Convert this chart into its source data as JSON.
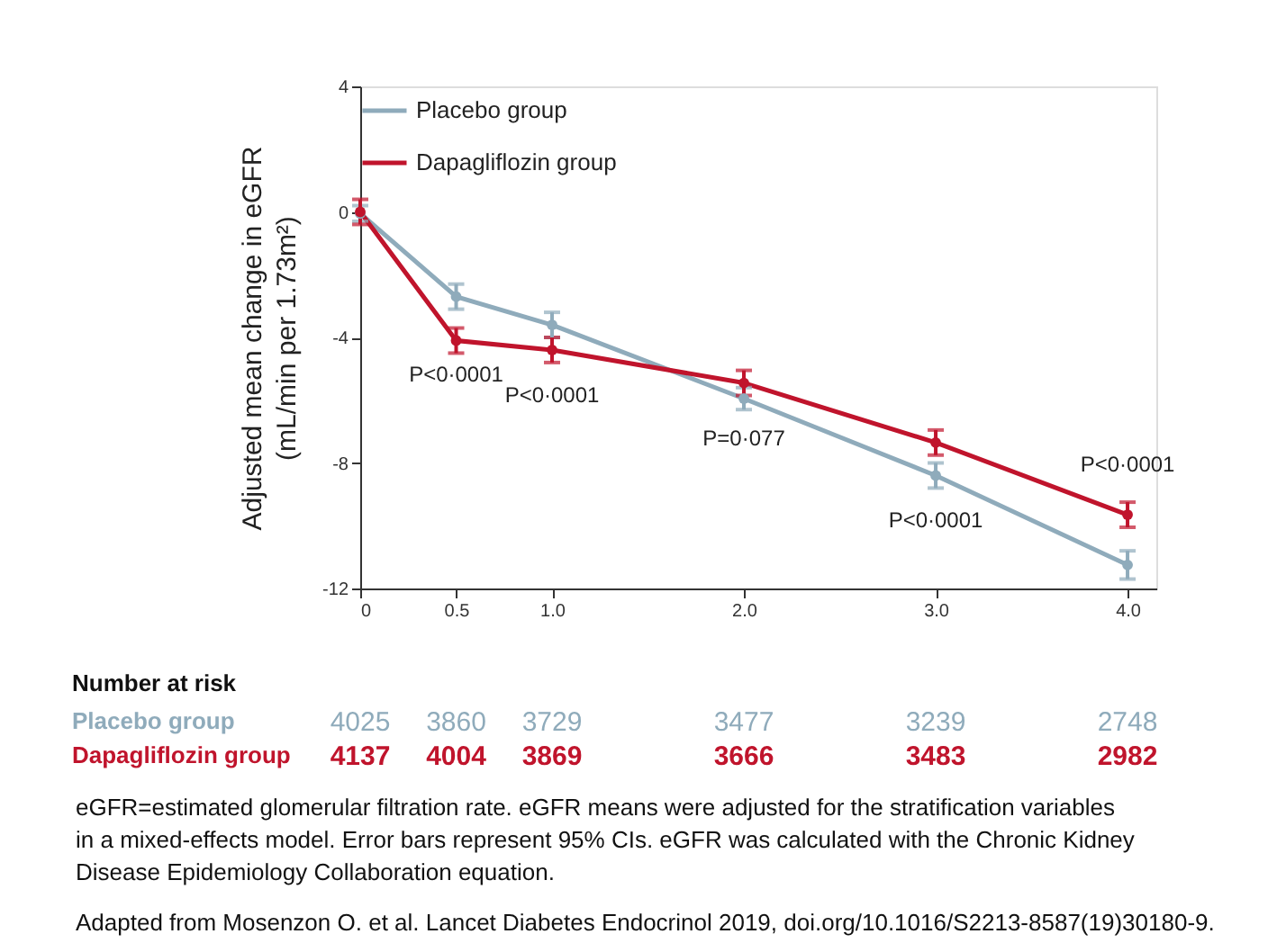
{
  "chart_data": {
    "type": "line",
    "ylabel": "Adjusted mean change in eGFR (mL/min per 1.73m²)",
    "x": [
      0,
      0.5,
      1,
      2,
      3,
      4
    ],
    "series": [
      {
        "name": "Placebo group",
        "color": "#8fabbb",
        "values": [
          -0.05,
          -2.7,
          -3.6,
          -5.95,
          -8.4,
          -11.25
        ],
        "errors": [
          0.25,
          0.4,
          0.4,
          0.35,
          0.4,
          0.45
        ]
      },
      {
        "name": "Dapagliflozin group",
        "color": "#c0142c",
        "values": [
          0,
          -4.1,
          -4.4,
          -5.45,
          -7.35,
          -9.65
        ],
        "errors": [
          0.4,
          0.4,
          0.4,
          0.4,
          0.4,
          0.4
        ]
      }
    ],
    "xlim": [
      0,
      4.15
    ],
    "xticks": [
      {
        "value": 0,
        "label": "0"
      },
      0.5,
      {
        "value": 1,
        "label": "1.0"
      },
      {
        "value": 2,
        "label": "2.0"
      },
      {
        "value": 3,
        "label": "3.0"
      },
      {
        "value": 4,
        "label": "4.0"
      }
    ],
    "ylim": [
      -12,
      4
    ],
    "yticks": [
      -12,
      -8,
      -4,
      0,
      4
    ],
    "grid": false,
    "legend": "top left",
    "marker": "circle",
    "line_style": "solid",
    "annotations": [
      "P<0·0001",
      "P<0·0001",
      "P=0·077",
      "P<0·0001",
      "P<0·0001",
      "Number at risk",
      "Placebo group",
      "4025",
      "3860",
      "3729",
      "3477",
      "3239",
      "2748",
      "Dapagliflozin group",
      "4137",
      "4004",
      "3869",
      "3666",
      "3483",
      "2982",
      "eGFR=estimated glomerular filtration rate. eGFR means were adjusted for the stratification variables in a mixed-effects model. Error bars represent 95% CIs. eGFR was calculated with the Chronic Kidney Disease Epidemiology Collaboration equation.",
      "Adapted from Mosenzon O. et al. Lancet Diabetes Endocrinol 2019, doi.org/10.1016/S2213-8587(19)30180-9."
    ]
  }
}
